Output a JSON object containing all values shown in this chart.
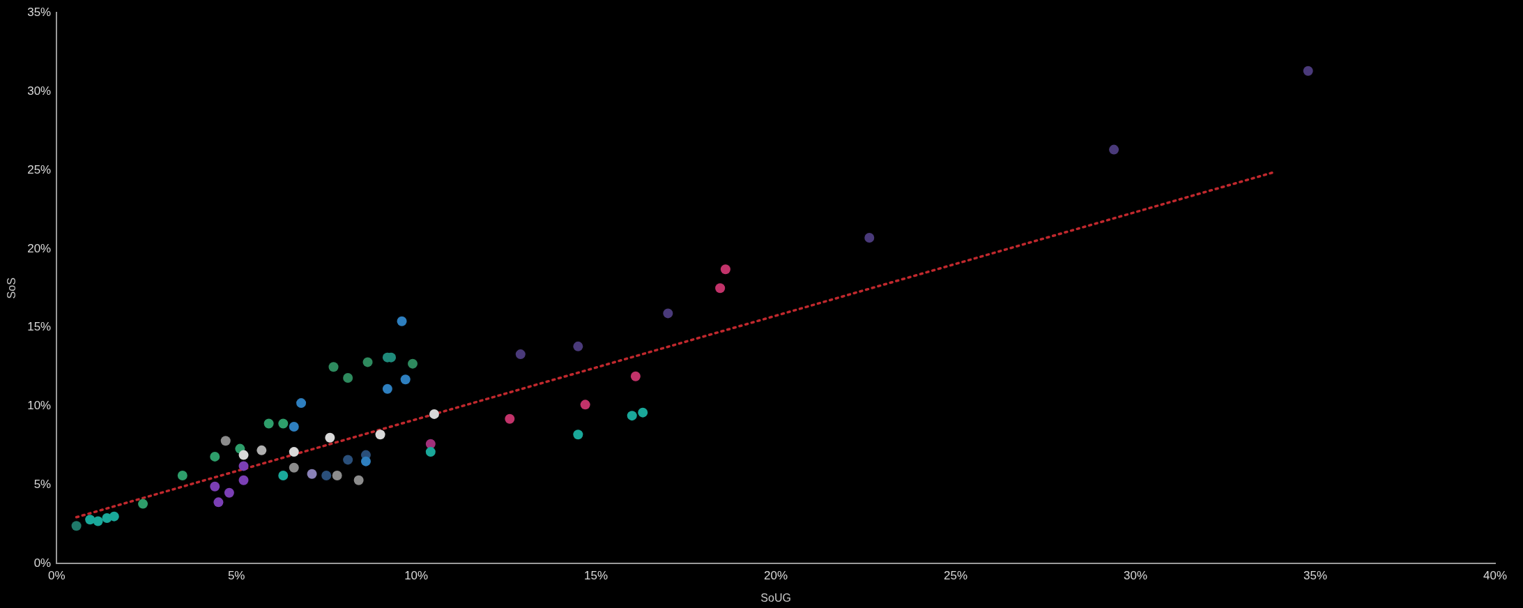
{
  "chart_data": {
    "type": "scatter",
    "xlabel": "SoUG",
    "ylabel": "SoS",
    "xlim": [
      0,
      40
    ],
    "ylim": [
      0,
      35
    ],
    "xticks": [
      {
        "value": 0,
        "label": "0%"
      },
      {
        "value": 5,
        "label": "5%"
      },
      {
        "value": 10,
        "label": "10%"
      },
      {
        "value": 15,
        "label": "15%"
      },
      {
        "value": 20,
        "label": "20%"
      },
      {
        "value": 25,
        "label": "25%"
      },
      {
        "value": 30,
        "label": "30%"
      },
      {
        "value": 35,
        "label": "35%"
      },
      {
        "value": 40,
        "label": "40%"
      }
    ],
    "yticks": [
      {
        "value": 0,
        "label": "0%"
      },
      {
        "value": 5,
        "label": "5%"
      },
      {
        "value": 10,
        "label": "10%"
      },
      {
        "value": 15,
        "label": "15%"
      },
      {
        "value": 20,
        "label": "20%"
      },
      {
        "value": 25,
        "label": "25%"
      },
      {
        "value": 30,
        "label": "30%"
      },
      {
        "value": 35,
        "label": "35%"
      }
    ],
    "grid": false,
    "legend": false,
    "series": [
      {
        "type": "scatter",
        "marker": "circle",
        "x": [
          0.55,
          0.93,
          1.15,
          1.4,
          1.6,
          2.4,
          3.5,
          4.4,
          4.4,
          4.5,
          4.8,
          4.7,
          5.1,
          5.2,
          5.2,
          5.2,
          5.7,
          5.9,
          6.3,
          6.3,
          6.6,
          6.6,
          6.6,
          6.8,
          7.1,
          7.5,
          7.6,
          7.7,
          8.1,
          7.8,
          8.1,
          8.4,
          8.6,
          8.6,
          8.65,
          9.2,
          9.3,
          9.2,
          9.0,
          9.6,
          9.7,
          9.9,
          10.5,
          10.4,
          10.4,
          12.6,
          12.9,
          14.5,
          14.5,
          14.7,
          16.0,
          16.3,
          16.1,
          17.0,
          18.45,
          18.6,
          22.6,
          29.4,
          34.8
        ],
        "values": [
          2.4,
          2.8,
          2.7,
          2.9,
          3.0,
          3.8,
          5.6,
          6.8,
          4.9,
          3.9,
          4.5,
          7.8,
          7.3,
          6.9,
          6.2,
          5.3,
          7.2,
          8.9,
          8.9,
          5.6,
          8.7,
          7.1,
          6.1,
          10.2,
          5.7,
          5.6,
          8.0,
          12.5,
          11.8,
          5.6,
          6.6,
          5.3,
          6.9,
          6.5,
          12.8,
          13.1,
          13.1,
          11.1,
          8.2,
          15.4,
          11.7,
          12.7,
          9.5,
          7.6,
          7.1,
          9.2,
          13.3,
          8.2,
          13.8,
          10.1,
          9.4,
          9.6,
          11.9,
          15.9,
          17.5,
          18.7,
          20.7,
          26.3,
          31.3
        ],
        "colors": [
          "#1f7a6a",
          "#1aa89a",
          "#1aa89a",
          "#1aa89a",
          "#1aa89a",
          "#2e9e6b",
          "#2e9e6b",
          "#2e9e6b",
          "#7b3fb5",
          "#7b3fb5",
          "#7b3fb5",
          "#8c8c8c",
          "#2e9e6b",
          "#d9d9d9",
          "#7b3fb5",
          "#7b3fb5",
          "#b0b0b0",
          "#2e9e6b",
          "#2e9e6b",
          "#1aa89a",
          "#2e7fbf",
          "#d9d9d9",
          "#8c8c8c",
          "#2e7fbf",
          "#8a82b8",
          "#2a4f7a",
          "#d9d9d9",
          "#2e8a5e",
          "#2e8a5e",
          "#8c8c8c",
          "#2a4f7a",
          "#8c8c8c",
          "#2a4f7a",
          "#2e7fbf",
          "#2e8a5e",
          "#1f8a7a",
          "#1f8a7a",
          "#2e7fbf",
          "#d9d9d9",
          "#2e7fbf",
          "#2e7fbf",
          "#2e8a5e",
          "#d9d9d9",
          "#a0307a",
          "#1aa89a",
          "#c2336a",
          "#4a3a7a",
          "#1aa89a",
          "#4a3a7a",
          "#c2336a",
          "#1aa89a",
          "#1aa89a",
          "#c2336a",
          "#4a3a7a",
          "#c2336a",
          "#c2336a",
          "#4a3a7a",
          "#4a3a7a",
          "#4a3a7a"
        ]
      },
      {
        "type": "line",
        "marker": "none",
        "line_style": "dotted",
        "color": "#c0282d",
        "x": [
          0.55,
          33.9
        ],
        "values": [
          2.95,
          24.9
        ]
      }
    ]
  }
}
